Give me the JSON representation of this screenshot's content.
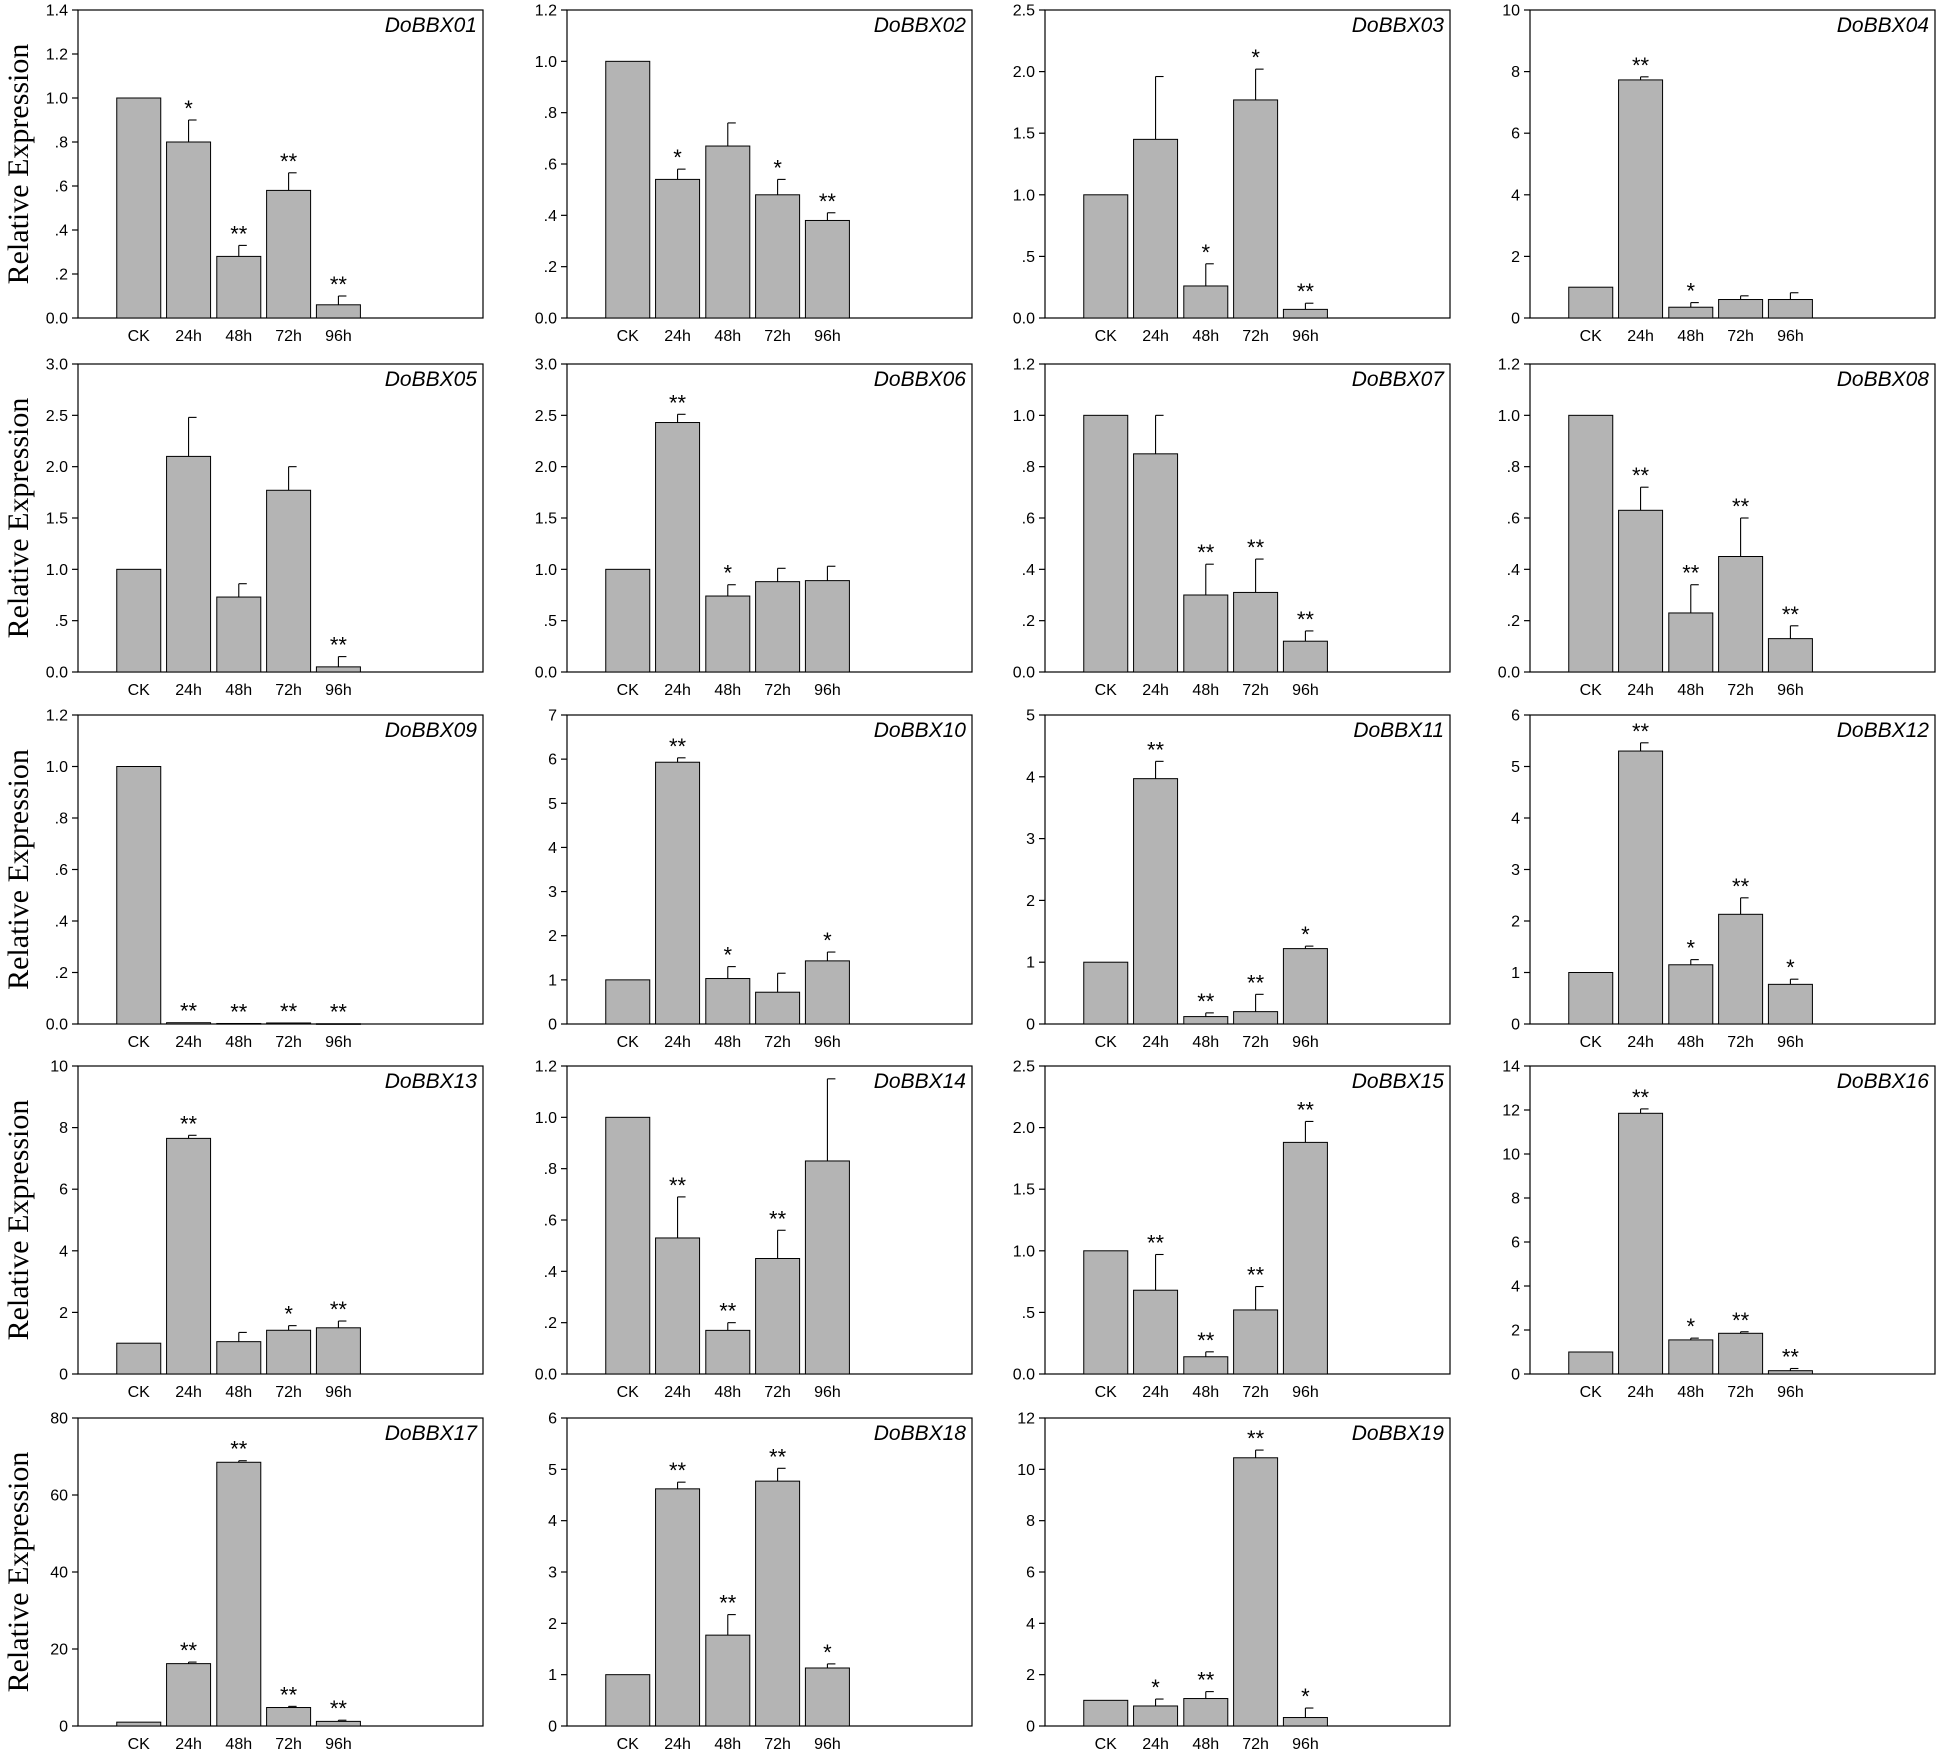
{
  "figure": {
    "ylabel": "Relative Expression"
  },
  "chart_data": [
    {
      "type": "bar",
      "title": "DoBBX01",
      "categories": [
        "CK",
        "24h",
        "48h",
        "72h",
        "96h"
      ],
      "values": [
        1.0,
        0.8,
        0.28,
        0.58,
        0.06
      ],
      "errors": [
        0,
        0.1,
        0.05,
        0.08,
        0.04
      ],
      "significance": [
        "",
        "*",
        "**",
        "**",
        "**"
      ],
      "ylim": [
        0,
        1.4
      ],
      "yticks": [
        "0.0",
        ".2",
        ".4",
        ".6",
        ".8",
        "1.0",
        "1.2",
        "1.4"
      ]
    },
    {
      "type": "bar",
      "title": "DoBBX02",
      "categories": [
        "CK",
        "24h",
        "48h",
        "72h",
        "96h"
      ],
      "values": [
        1.0,
        0.54,
        0.67,
        0.48,
        0.38
      ],
      "errors": [
        0,
        0.04,
        0.09,
        0.06,
        0.03
      ],
      "significance": [
        "",
        "*",
        "",
        "*",
        "**"
      ],
      "ylim": [
        0,
        1.2
      ],
      "yticks": [
        "0.0",
        ".2",
        ".4",
        ".6",
        ".8",
        "1.0",
        "1.2"
      ]
    },
    {
      "type": "bar",
      "title": "DoBBX03",
      "categories": [
        "CK",
        "24h",
        "48h",
        "72h",
        "96h"
      ],
      "values": [
        1.0,
        1.45,
        0.26,
        1.77,
        0.07
      ],
      "errors": [
        0,
        0.51,
        0.18,
        0.25,
        0.05
      ],
      "significance": [
        "",
        "",
        "*",
        "*",
        "**"
      ],
      "ylim": [
        0,
        2.5
      ],
      "yticks": [
        "0.0",
        ".5",
        "1.0",
        "1.5",
        "2.0",
        "2.5"
      ]
    },
    {
      "type": "bar",
      "title": "DoBBX04",
      "categories": [
        "CK",
        "24h",
        "48h",
        "72h",
        "96h"
      ],
      "values": [
        1.0,
        7.73,
        0.35,
        0.6,
        0.6
      ],
      "errors": [
        0,
        0.1,
        0.15,
        0.12,
        0.22
      ],
      "significance": [
        "",
        "**",
        "*",
        "",
        ""
      ],
      "ylim": [
        0,
        10
      ],
      "yticks": [
        "0",
        "2",
        "4",
        "6",
        "8",
        "10"
      ]
    },
    {
      "type": "bar",
      "title": "DoBBX05",
      "categories": [
        "CK",
        "24h",
        "48h",
        "72h",
        "96h"
      ],
      "values": [
        1.0,
        2.1,
        0.73,
        1.77,
        0.05
      ],
      "errors": [
        0,
        0.38,
        0.13,
        0.23,
        0.1
      ],
      "significance": [
        "",
        "",
        "",
        "",
        "**"
      ],
      "ylim": [
        0,
        3.0
      ],
      "yticks": [
        "0.0",
        ".5",
        "1.0",
        "1.5",
        "2.0",
        "2.5",
        "3.0"
      ]
    },
    {
      "type": "bar",
      "title": "DoBBX06",
      "categories": [
        "CK",
        "24h",
        "48h",
        "72h",
        "96h"
      ],
      "values": [
        1.0,
        2.43,
        0.74,
        0.88,
        0.89
      ],
      "errors": [
        0,
        0.08,
        0.11,
        0.13,
        0.14
      ],
      "significance": [
        "",
        "**",
        "*",
        "",
        ""
      ],
      "ylim": [
        0,
        3.0
      ],
      "yticks": [
        "0.0",
        ".5",
        "1.0",
        "1.5",
        "2.0",
        "2.5",
        "3.0"
      ]
    },
    {
      "type": "bar",
      "title": "DoBBX07",
      "categories": [
        "CK",
        "24h",
        "48h",
        "72h",
        "96h"
      ],
      "values": [
        1.0,
        0.85,
        0.3,
        0.31,
        0.12
      ],
      "errors": [
        0,
        0.15,
        0.12,
        0.13,
        0.04
      ],
      "significance": [
        "",
        "",
        "**",
        "**",
        "**"
      ],
      "ylim": [
        0,
        1.2
      ],
      "yticks": [
        "0.0",
        ".2",
        ".4",
        ".6",
        ".8",
        "1.0",
        "1.2"
      ]
    },
    {
      "type": "bar",
      "title": "DoBBX08",
      "categories": [
        "CK",
        "24h",
        "48h",
        "72h",
        "96h"
      ],
      "values": [
        1.0,
        0.63,
        0.23,
        0.45,
        0.13
      ],
      "errors": [
        0,
        0.09,
        0.11,
        0.15,
        0.05
      ],
      "significance": [
        "",
        "**",
        "**",
        "**",
        "**"
      ],
      "ylim": [
        0,
        1.2
      ],
      "yticks": [
        "0.0",
        ".2",
        ".4",
        ".6",
        ".8",
        "1.0",
        "1.2"
      ]
    },
    {
      "type": "bar",
      "title": "DoBBX09",
      "categories": [
        "CK",
        "24h",
        "48h",
        "72h",
        "96h"
      ],
      "values": [
        1.0,
        0.005,
        0.002,
        0.004,
        0.001
      ],
      "errors": [
        0,
        0,
        0,
        0,
        0
      ],
      "significance": [
        "",
        "**",
        "**",
        "**",
        "**"
      ],
      "ylim": [
        0,
        1.2
      ],
      "yticks": [
        "0.0",
        ".2",
        ".4",
        ".6",
        ".8",
        "1.0",
        "1.2"
      ]
    },
    {
      "type": "bar",
      "title": "DoBBX10",
      "categories": [
        "CK",
        "24h",
        "48h",
        "72h",
        "96h"
      ],
      "values": [
        1.0,
        5.93,
        1.03,
        0.72,
        1.43
      ],
      "errors": [
        0,
        0.1,
        0.27,
        0.43,
        0.2
      ],
      "significance": [
        "",
        "**",
        "*",
        "",
        "*"
      ],
      "ylim": [
        0,
        7
      ],
      "yticks": [
        "0",
        "1",
        "2",
        "3",
        "4",
        "5",
        "6",
        "7"
      ]
    },
    {
      "type": "bar",
      "title": "DoBBX11",
      "categories": [
        "CK",
        "24h",
        "48h",
        "72h",
        "96h"
      ],
      "values": [
        1.0,
        3.97,
        0.12,
        0.2,
        1.22
      ],
      "errors": [
        0,
        0.28,
        0.06,
        0.28,
        0.04
      ],
      "significance": [
        "",
        "**",
        "**",
        "**",
        "*"
      ],
      "ylim": [
        0,
        5
      ],
      "yticks": [
        "0",
        "1",
        "2",
        "3",
        "4",
        "5"
      ]
    },
    {
      "type": "bar",
      "title": "DoBBX12",
      "categories": [
        "CK",
        "24h",
        "48h",
        "72h",
        "96h"
      ],
      "values": [
        1.0,
        5.3,
        1.15,
        2.13,
        0.77
      ],
      "errors": [
        0,
        0.16,
        0.1,
        0.32,
        0.1
      ],
      "significance": [
        "",
        "**",
        "*",
        "**",
        "*"
      ],
      "ylim": [
        0,
        6
      ],
      "yticks": [
        "0",
        "1",
        "2",
        "3",
        "4",
        "5",
        "6"
      ]
    },
    {
      "type": "bar",
      "title": "DoBBX13",
      "categories": [
        "CK",
        "24h",
        "48h",
        "72h",
        "96h"
      ],
      "values": [
        1.0,
        7.65,
        1.05,
        1.42,
        1.5
      ],
      "errors": [
        0,
        0.1,
        0.3,
        0.15,
        0.22
      ],
      "significance": [
        "",
        "**",
        "",
        "*",
        "**"
      ],
      "ylim": [
        0,
        10
      ],
      "yticks": [
        "0",
        "2",
        "4",
        "6",
        "8",
        "10"
      ]
    },
    {
      "type": "bar",
      "title": "DoBBX14",
      "categories": [
        "CK",
        "24h",
        "48h",
        "72h",
        "96h"
      ],
      "values": [
        1.0,
        0.53,
        0.17,
        0.45,
        0.83
      ],
      "errors": [
        0,
        0.16,
        0.03,
        0.11,
        0.32
      ],
      "significance": [
        "",
        "**",
        "**",
        "**",
        ""
      ],
      "ylim": [
        0,
        1.2
      ],
      "yticks": [
        "0.0",
        ".2",
        ".4",
        ".6",
        ".8",
        "1.0",
        "1.2"
      ]
    },
    {
      "type": "bar",
      "title": "DoBBX15",
      "categories": [
        "CK",
        "24h",
        "48h",
        "72h",
        "96h"
      ],
      "values": [
        1.0,
        0.68,
        0.14,
        0.52,
        1.88
      ],
      "errors": [
        0,
        0.29,
        0.04,
        0.19,
        0.17
      ],
      "significance": [
        "",
        "**",
        "**",
        "**",
        "**"
      ],
      "ylim": [
        0,
        2.5
      ],
      "yticks": [
        "0.0",
        ".5",
        "1.0",
        "1.5",
        "2.0",
        "2.5"
      ]
    },
    {
      "type": "bar",
      "title": "DoBBX16",
      "categories": [
        "CK",
        "24h",
        "48h",
        "72h",
        "96h"
      ],
      "values": [
        1.0,
        11.85,
        1.55,
        1.85,
        0.15
      ],
      "errors": [
        0,
        0.2,
        0.08,
        0.07,
        0.1
      ],
      "significance": [
        "",
        "**",
        "*",
        "**",
        "**"
      ],
      "ylim": [
        0,
        14
      ],
      "yticks": [
        "0",
        "2",
        "4",
        "6",
        "8",
        "10",
        "12",
        "14"
      ]
    },
    {
      "type": "bar",
      "title": "DoBBX17",
      "categories": [
        "CK",
        "24h",
        "48h",
        "72h",
        "96h"
      ],
      "values": [
        1.0,
        16.2,
        68.5,
        4.8,
        1.2
      ],
      "errors": [
        0,
        0.4,
        0.4,
        0.3,
        0.3
      ],
      "significance": [
        "",
        "**",
        "**",
        "**",
        "**"
      ],
      "ylim": [
        0,
        80
      ],
      "yticks": [
        "0",
        "20",
        "40",
        "60",
        "80"
      ]
    },
    {
      "type": "bar",
      "title": "DoBBX18",
      "categories": [
        "CK",
        "24h",
        "48h",
        "72h",
        "96h"
      ],
      "values": [
        1.0,
        4.62,
        1.77,
        4.77,
        1.13
      ],
      "errors": [
        0,
        0.13,
        0.4,
        0.25,
        0.08
      ],
      "significance": [
        "",
        "**",
        "**",
        "**",
        "*"
      ],
      "ylim": [
        0,
        6
      ],
      "yticks": [
        "0",
        "1",
        "2",
        "3",
        "4",
        "5",
        "6"
      ]
    },
    {
      "type": "bar",
      "title": "DoBBX19",
      "categories": [
        "CK",
        "24h",
        "48h",
        "72h",
        "96h"
      ],
      "values": [
        1.0,
        0.78,
        1.07,
        10.45,
        0.33
      ],
      "errors": [
        0,
        0.27,
        0.27,
        0.3,
        0.37
      ],
      "significance": [
        "",
        "*",
        "**",
        "**",
        "*"
      ],
      "ylim": [
        0,
        12
      ],
      "yticks": [
        "0",
        "2",
        "4",
        "6",
        "8",
        "10",
        "12"
      ]
    }
  ]
}
